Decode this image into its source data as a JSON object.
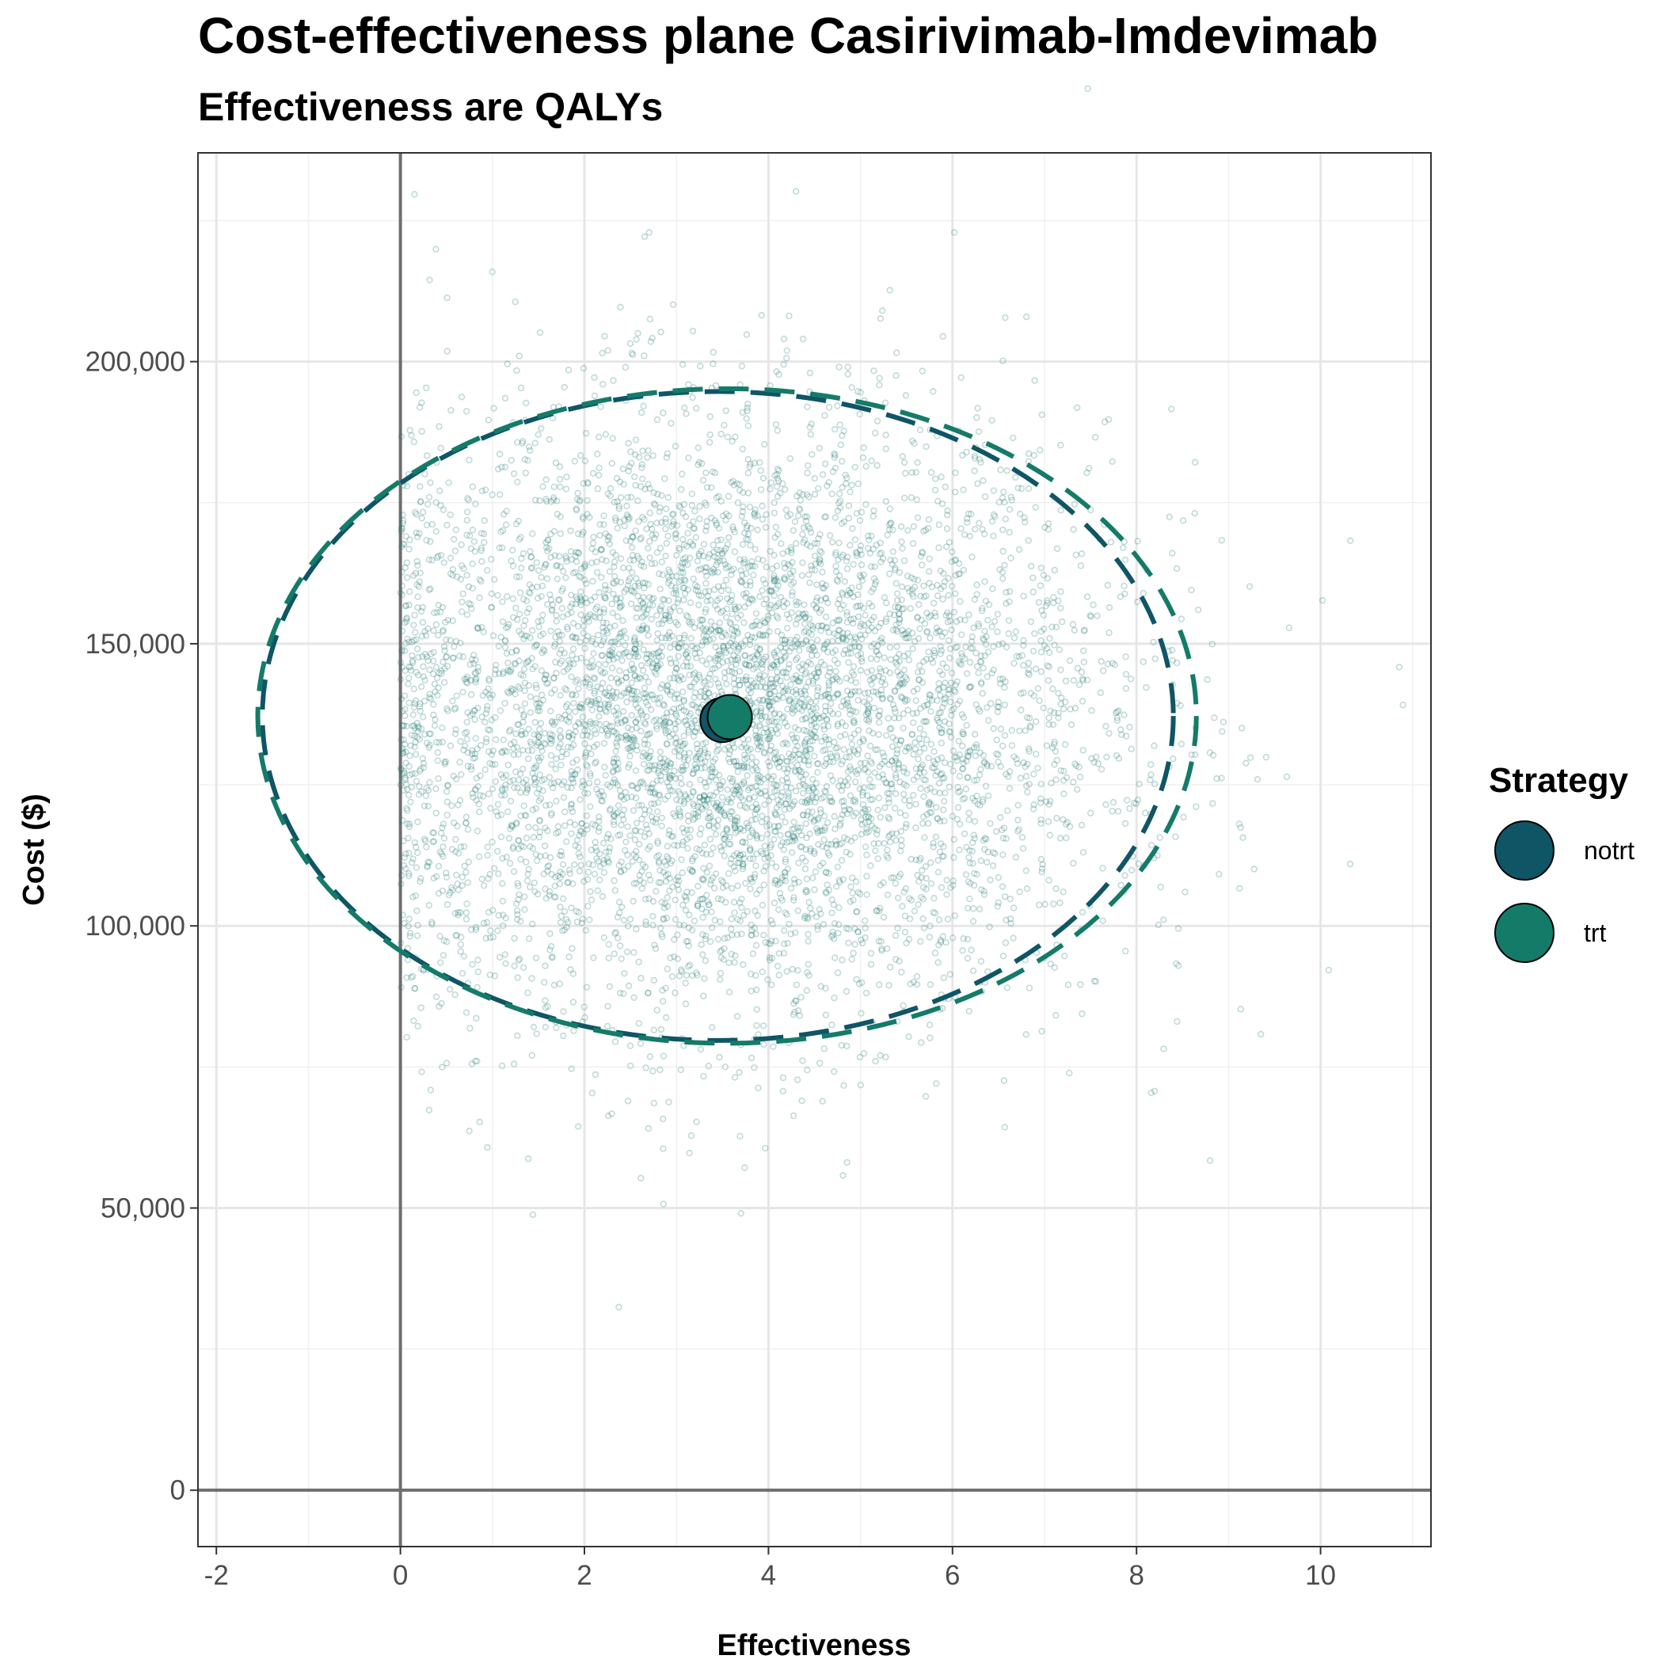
{
  "chart_data": {
    "type": "scatter",
    "title": "Cost-effectiveness plane Casirivimab-Imdevimab",
    "subtitle": "Effectiveness are QALYs",
    "xlabel": "Effectiveness",
    "ylabel": "Cost ($)",
    "xlim": [
      -2.2,
      11.2
    ],
    "ylim": [
      -10000,
      237000
    ],
    "x_ticks": [
      -2,
      0,
      2,
      4,
      6,
      8,
      10
    ],
    "x_tick_labels": [
      "-2",
      "0",
      "2",
      "4",
      "6",
      "8",
      "10"
    ],
    "y_ticks": [
      0,
      50000,
      100000,
      150000,
      200000
    ],
    "y_tick_labels": [
      "0",
      "50,000",
      "100,000",
      "150,000",
      "200,000"
    ],
    "grid": true,
    "reference_lines": {
      "x": 0,
      "y": 0
    },
    "legend": {
      "title": "Strategy",
      "position": "right",
      "entries": [
        {
          "name": "notrt",
          "color": "#0f5566"
        },
        {
          "name": "trt",
          "color": "#147b68"
        }
      ]
    },
    "series": [
      {
        "name": "notrt",
        "color": "#0f5566",
        "mean": {
          "x": 3.5,
          "y": 136500
        },
        "ellipse": {
          "cx": 3.45,
          "cy": 137200,
          "rx": 4.95,
          "ry": 57500
        }
      },
      {
        "name": "trt",
        "color": "#147b68",
        "mean": {
          "x": 3.58,
          "y": 137000
        },
        "ellipse": {
          "cx": 3.55,
          "cy": 137200,
          "rx": 5.1,
          "ry": 58000
        }
      }
    ],
    "psa_cloud": {
      "description_points": 6000,
      "x_mean": 3.55,
      "x_sd": 2.05,
      "y_mean": 137000,
      "y_sd": 26000,
      "color": "#1f7a74"
    }
  }
}
